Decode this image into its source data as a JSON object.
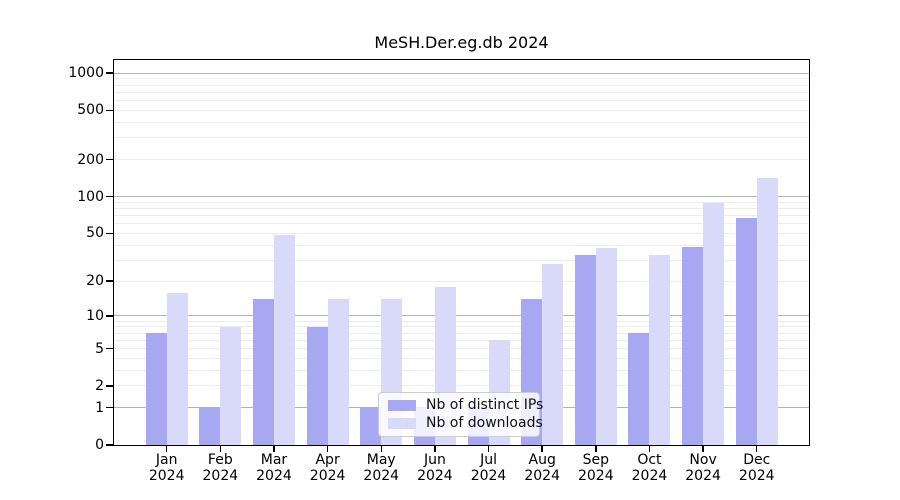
{
  "chart_data": {
    "type": "bar",
    "title": "MeSH.Der.eg.db 2024",
    "year_label": "2024",
    "categories": [
      "Jan",
      "Feb",
      "Mar",
      "Apr",
      "May",
      "Jun",
      "Jul",
      "Aug",
      "Sep",
      "Oct",
      "Nov",
      "Dec"
    ],
    "series": [
      {
        "name": "Nb of distinct IPs",
        "color": "#a8a8f2",
        "values": [
          7,
          1,
          14,
          8,
          1,
          1,
          1,
          14,
          33,
          7,
          39,
          67
        ]
      },
      {
        "name": "Nb of downloads",
        "color": "#d9d9fa",
        "values": [
          16,
          8,
          49,
          14,
          14,
          18,
          6,
          28,
          38,
          33,
          88,
          142
        ]
      }
    ],
    "xlabel": "",
    "ylabel": "",
    "yscale": "log1p",
    "ylim": [
      0,
      1300
    ],
    "ytick_values": [
      0,
      1,
      2,
      5,
      10,
      20,
      50,
      100,
      200,
      500,
      1000
    ],
    "ytick_labels": [
      "0",
      "1",
      "2",
      "5",
      "10",
      "20",
      "50",
      "100",
      "200",
      "500",
      "1000"
    ],
    "grid": {
      "major_values": [
        1,
        10,
        100,
        1000
      ],
      "minor_values": [
        2,
        3,
        4,
        5,
        6,
        7,
        8,
        9,
        20,
        30,
        40,
        50,
        60,
        70,
        80,
        90,
        200,
        300,
        400,
        500,
        600,
        700,
        800,
        900
      ]
    },
    "legend": {
      "position": "bottom-center",
      "entries": [
        "Nb of distinct IPs",
        "Nb of downloads"
      ]
    },
    "colors": {
      "major_grid": "#b3b3b3",
      "minor_grid": "#ececec",
      "frame": "#000000",
      "background": "#ffffff"
    }
  }
}
